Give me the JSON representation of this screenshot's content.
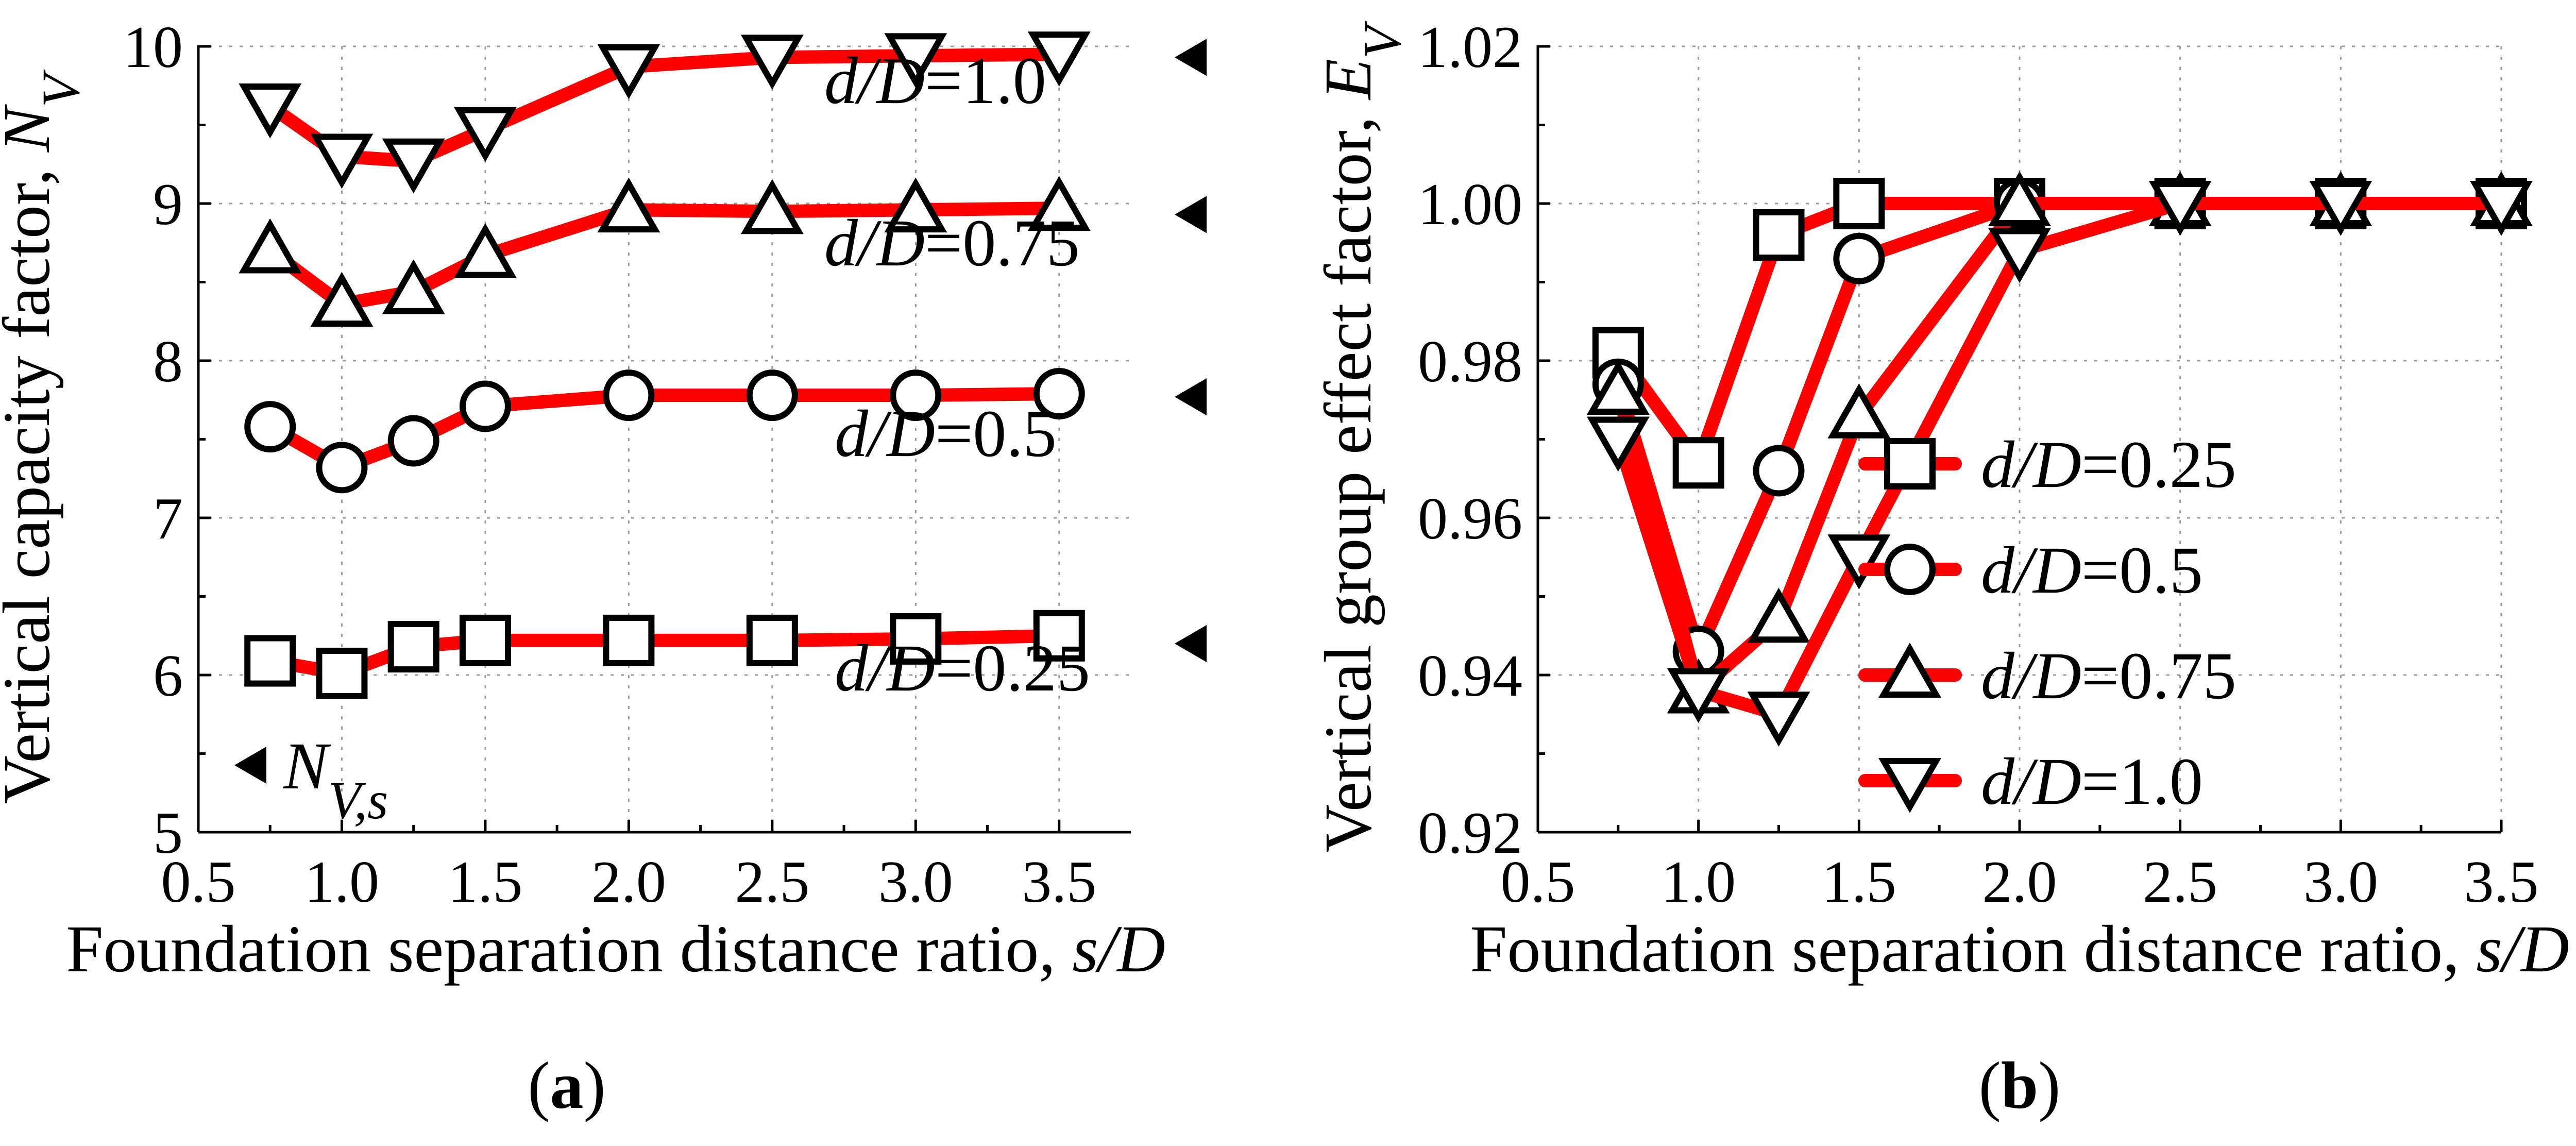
{
  "colors": {
    "line": "#ff0000",
    "marker_stroke": "#000000",
    "marker_fill": "#ffffff",
    "arrow": "#000000"
  },
  "chart_data": [
    {
      "panel": "(a)",
      "panel_letter": "a",
      "type": "line",
      "xlabel": "Foundation separation distance ratio, ",
      "xlabel_italic": "s/D",
      "ylabel": "Vertical capacity factor, ",
      "ylabel_italic": "N",
      "ylabel_sub": "V",
      "xlim": [
        0.5,
        3.75
      ],
      "ylim": [
        5,
        10
      ],
      "xticks": [
        "0.5",
        "1.0",
        "1.5",
        "2.0",
        "2.5",
        "3.0",
        "3.5"
      ],
      "yticks": [
        "5",
        "6",
        "7",
        "8",
        "9",
        "10"
      ],
      "x": [
        0.75,
        1.0,
        1.25,
        1.5,
        2.0,
        2.5,
        3.0,
        3.5
      ],
      "series": [
        {
          "name": "d/D=1.0",
          "label_prefix": "d/D",
          "label_value": "=1.0",
          "marker": "triangle-down",
          "values": [
            9.62,
            9.3,
            9.27,
            9.47,
            9.87,
            9.93,
            9.94,
            9.95
          ],
          "reference": 9.93
        },
        {
          "name": "d/D=0.75",
          "label_prefix": "d/D",
          "label_value": "=0.75",
          "marker": "triangle-up",
          "values": [
            8.7,
            8.36,
            8.44,
            8.67,
            8.96,
            8.95,
            8.96,
            8.97
          ],
          "reference": 8.93
        },
        {
          "name": "d/D=0.5",
          "label_prefix": "d/D",
          "label_value": "=0.5",
          "marker": "circle",
          "values": [
            7.58,
            7.32,
            7.49,
            7.71,
            7.78,
            7.78,
            7.78,
            7.79
          ],
          "reference": 7.77
        },
        {
          "name": "d/D=0.25",
          "label_prefix": "d/D",
          "label_value": "=0.25",
          "marker": "square",
          "values": [
            6.09,
            6.01,
            6.18,
            6.22,
            6.22,
            6.22,
            6.23,
            6.25
          ],
          "reference": 6.2
        }
      ],
      "reference_legend": {
        "symbol": "N",
        "subscript": "V,s"
      }
    },
    {
      "panel": "(b)",
      "panel_letter": "b",
      "type": "line",
      "xlabel": "Foundation separation distance ratio, ",
      "xlabel_italic": "s/D",
      "ylabel": "Vertical group effect factor, ",
      "ylabel_italic": "E",
      "ylabel_sub": "V",
      "xlim": [
        0.5,
        3.5
      ],
      "ylim": [
        0.92,
        1.02
      ],
      "xticks": [
        "0.5",
        "1.0",
        "1.5",
        "2.0",
        "2.5",
        "3.0",
        "3.5"
      ],
      "yticks": [
        "0.92",
        "0.94",
        "0.96",
        "0.98",
        "1.00",
        "1.02"
      ],
      "x": [
        0.75,
        1.0,
        1.25,
        1.5,
        2.0,
        2.5,
        3.0,
        3.5
      ],
      "series": [
        {
          "name": "d/D=0.25",
          "label_prefix": "d/D",
          "label_value": "=0.25",
          "marker": "square",
          "values": [
            0.981,
            0.967,
            0.996,
            1.0,
            1.0,
            1.0,
            1.0,
            1.0
          ]
        },
        {
          "name": "d/D=0.5",
          "label_prefix": "d/D",
          "label_value": "=0.5",
          "marker": "circle",
          "values": [
            0.977,
            0.943,
            0.966,
            0.993,
            1.0,
            1.0,
            1.0,
            1.0
          ]
        },
        {
          "name": "d/D=0.75",
          "label_prefix": "d/D",
          "label_value": "=0.75",
          "marker": "triangle-up",
          "values": [
            0.976,
            0.938,
            0.947,
            0.973,
            1.0,
            1.0,
            1.0,
            1.0
          ]
        },
        {
          "name": "d/D=1.0",
          "label_prefix": "d/D",
          "label_value": "=1.0",
          "marker": "triangle-down",
          "values": [
            0.97,
            0.938,
            0.935,
            0.955,
            0.994,
            1.0,
            1.0,
            1.0
          ]
        }
      ],
      "legend_position": "center-right"
    }
  ]
}
